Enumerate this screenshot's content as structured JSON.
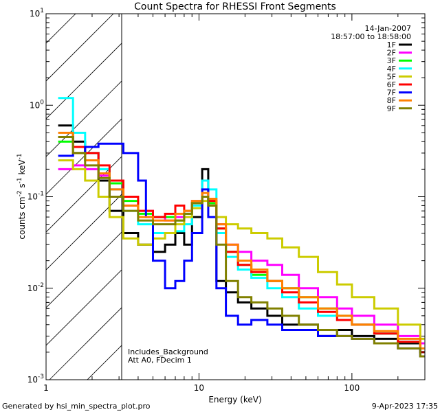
{
  "chart_data": {
    "type": "line",
    "title": "Count Spectra for RHESSI Front Segments",
    "xlabel": "Energy (keV)",
    "ylabel": "counts cm-2 s-1 keV-1",
    "xscale": "log",
    "yscale": "log",
    "xlim": [
      1,
      300
    ],
    "ylim": [
      0.001,
      10
    ],
    "x_ticks": [
      {
        "value": 1,
        "label": "1"
      },
      {
        "value": 10,
        "label": "10"
      },
      {
        "value": 100,
        "label": "100"
      }
    ],
    "y_ticks": [
      {
        "value": 0.001,
        "base": "10",
        "exp": "-3"
      },
      {
        "value": 0.01,
        "base": "10",
        "exp": "-2"
      },
      {
        "value": 0.1,
        "base": "10",
        "exp": "-1"
      },
      {
        "value": 1,
        "base": "10",
        "exp": "0"
      },
      {
        "value": 10,
        "base": "10",
        "exp": "1"
      }
    ],
    "excluded_region": {
      "x_from": 1,
      "x_to": 3,
      "style": "hatched"
    },
    "date": "14-Jan-2007",
    "time_range": "18:57:00 to 18:58:00",
    "annotations": [
      "Includes_Background",
      "Att A0, FDecim 1"
    ],
    "legend_position": "top-right",
    "series": [
      {
        "name": "1F",
        "color": "#000000",
        "points": [
          [
            1.2,
            0.6
          ],
          [
            1.5,
            0.4
          ],
          [
            1.8,
            0.3
          ],
          [
            2.2,
            0.15
          ],
          [
            2.6,
            0.07
          ],
          [
            3.2,
            0.04
          ],
          [
            4.0,
            0.03
          ],
          [
            5.0,
            0.025
          ],
          [
            6.0,
            0.03
          ],
          [
            7.0,
            0.04
          ],
          [
            8.0,
            0.03
          ],
          [
            9.0,
            0.06
          ],
          [
            10.5,
            0.2
          ],
          [
            11.5,
            0.08
          ],
          [
            13,
            0.012
          ],
          [
            15,
            0.009
          ],
          [
            18,
            0.007
          ],
          [
            22,
            0.006
          ],
          [
            28,
            0.005
          ],
          [
            35,
            0.004
          ],
          [
            45,
            0.004
          ],
          [
            60,
            0.003
          ],
          [
            80,
            0.0035
          ],
          [
            100,
            0.003
          ],
          [
            140,
            0.0028
          ],
          [
            200,
            0.0025
          ],
          [
            280,
            0.002
          ]
        ]
      },
      {
        "name": "2F",
        "color": "#ff00ff",
        "points": [
          [
            1.2,
            0.2
          ],
          [
            1.5,
            0.22
          ],
          [
            1.8,
            0.2
          ],
          [
            2.2,
            0.17
          ],
          [
            2.6,
            0.12
          ],
          [
            3.2,
            0.08
          ],
          [
            4.0,
            0.07
          ],
          [
            5.0,
            0.06
          ],
          [
            6.0,
            0.055
          ],
          [
            7.0,
            0.06
          ],
          [
            8.0,
            0.07
          ],
          [
            9.0,
            0.09
          ],
          [
            10.5,
            0.11
          ],
          [
            11.5,
            0.09
          ],
          [
            13,
            0.05
          ],
          [
            15,
            0.03
          ],
          [
            18,
            0.025
          ],
          [
            22,
            0.02
          ],
          [
            28,
            0.018
          ],
          [
            35,
            0.014
          ],
          [
            45,
            0.01
          ],
          [
            60,
            0.008
          ],
          [
            80,
            0.006
          ],
          [
            100,
            0.005
          ],
          [
            140,
            0.004
          ],
          [
            200,
            0.003
          ],
          [
            280,
            0.0025
          ]
        ]
      },
      {
        "name": "3F",
        "color": "#00ff00",
        "points": [
          [
            1.2,
            0.4
          ],
          [
            1.5,
            0.3
          ],
          [
            1.8,
            0.25
          ],
          [
            2.2,
            0.2
          ],
          [
            2.6,
            0.14
          ],
          [
            3.2,
            0.09
          ],
          [
            4.0,
            0.065
          ],
          [
            5.0,
            0.06
          ],
          [
            6.0,
            0.06
          ],
          [
            7.0,
            0.055
          ],
          [
            8.0,
            0.065
          ],
          [
            9.0,
            0.085
          ],
          [
            10.5,
            0.1
          ],
          [
            11.5,
            0.085
          ],
          [
            13,
            0.045
          ],
          [
            15,
            0.025
          ],
          [
            18,
            0.018
          ],
          [
            22,
            0.014
          ],
          [
            28,
            0.012
          ],
          [
            35,
            0.01
          ],
          [
            45,
            0.008
          ],
          [
            60,
            0.006
          ],
          [
            80,
            0.005
          ],
          [
            100,
            0.004
          ],
          [
            140,
            0.0032
          ],
          [
            200,
            0.0026
          ],
          [
            280,
            0.002
          ]
        ]
      },
      {
        "name": "4F",
        "color": "#00ffff",
        "points": [
          [
            1.2,
            1.2
          ],
          [
            1.5,
            0.5
          ],
          [
            1.8,
            0.3
          ],
          [
            2.2,
            0.2
          ],
          [
            2.6,
            0.12
          ],
          [
            3.2,
            0.07
          ],
          [
            4.0,
            0.05
          ],
          [
            5.0,
            0.04
          ],
          [
            6.0,
            0.04
          ],
          [
            7.0,
            0.042
          ],
          [
            8.0,
            0.05
          ],
          [
            9.0,
            0.08
          ],
          [
            10.5,
            0.15
          ],
          [
            11.5,
            0.12
          ],
          [
            13,
            0.04
          ],
          [
            15,
            0.022
          ],
          [
            18,
            0.016
          ],
          [
            22,
            0.013
          ],
          [
            28,
            0.01
          ],
          [
            35,
            0.008
          ],
          [
            45,
            0.006
          ],
          [
            60,
            0.005
          ],
          [
            80,
            0.0045
          ],
          [
            100,
            0.004
          ],
          [
            140,
            0.0032
          ],
          [
            200,
            0.0026
          ],
          [
            280,
            0.002
          ]
        ]
      },
      {
        "name": "5F",
        "color": "#cccc00",
        "points": [
          [
            1.2,
            0.25
          ],
          [
            1.5,
            0.2
          ],
          [
            1.8,
            0.15
          ],
          [
            2.2,
            0.1
          ],
          [
            2.6,
            0.06
          ],
          [
            3.2,
            0.035
          ],
          [
            4.0,
            0.03
          ],
          [
            5.0,
            0.035
          ],
          [
            6.0,
            0.04
          ],
          [
            7.0,
            0.05
          ],
          [
            8.0,
            0.06
          ],
          [
            9.0,
            0.075
          ],
          [
            10.5,
            0.09
          ],
          [
            11.5,
            0.08
          ],
          [
            13,
            0.06
          ],
          [
            15,
            0.05
          ],
          [
            18,
            0.045
          ],
          [
            22,
            0.04
          ],
          [
            28,
            0.035
          ],
          [
            35,
            0.028
          ],
          [
            45,
            0.022
          ],
          [
            60,
            0.015
          ],
          [
            80,
            0.011
          ],
          [
            100,
            0.008
          ],
          [
            140,
            0.006
          ],
          [
            200,
            0.004
          ],
          [
            280,
            0.0028
          ]
        ]
      },
      {
        "name": "6F",
        "color": "#ff0000",
        "points": [
          [
            1.2,
            0.45
          ],
          [
            1.5,
            0.35
          ],
          [
            1.8,
            0.3
          ],
          [
            2.2,
            0.22
          ],
          [
            2.6,
            0.15
          ],
          [
            3.2,
            0.1
          ],
          [
            4.0,
            0.07
          ],
          [
            5.0,
            0.06
          ],
          [
            6.0,
            0.065
          ],
          [
            7.0,
            0.08
          ],
          [
            8.0,
            0.07
          ],
          [
            9.0,
            0.085
          ],
          [
            10.5,
            0.1
          ],
          [
            11.5,
            0.09
          ],
          [
            13,
            0.045
          ],
          [
            15,
            0.025
          ],
          [
            18,
            0.018
          ],
          [
            22,
            0.015
          ],
          [
            28,
            0.012
          ],
          [
            35,
            0.009
          ],
          [
            45,
            0.007
          ],
          [
            60,
            0.0055
          ],
          [
            80,
            0.0045
          ],
          [
            100,
            0.004
          ],
          [
            140,
            0.0032
          ],
          [
            200,
            0.0026
          ],
          [
            280,
            0.002
          ]
        ]
      },
      {
        "name": "7F",
        "color": "#0000ff",
        "points": [
          [
            1.2,
            0.28
          ],
          [
            1.5,
            0.3
          ],
          [
            1.8,
            0.35
          ],
          [
            2.2,
            0.38
          ],
          [
            2.6,
            0.38
          ],
          [
            3.2,
            0.3
          ],
          [
            4.0,
            0.15
          ],
          [
            4.5,
            0.06
          ],
          [
            5.0,
            0.02
          ],
          [
            6.0,
            0.01
          ],
          [
            7.0,
            0.012
          ],
          [
            8.0,
            0.02
          ],
          [
            9.0,
            0.04
          ],
          [
            10.5,
            0.12
          ],
          [
            11.5,
            0.06
          ],
          [
            13,
            0.01
          ],
          [
            15,
            0.005
          ],
          [
            18,
            0.004
          ],
          [
            22,
            0.0045
          ],
          [
            28,
            0.004
          ],
          [
            35,
            0.0035
          ],
          [
            45,
            0.0035
          ],
          [
            60,
            0.003
          ],
          [
            80,
            0.003
          ],
          [
            100,
            0.0028
          ],
          [
            140,
            0.0025
          ],
          [
            200,
            0.0022
          ],
          [
            280,
            0.0018
          ]
        ]
      },
      {
        "name": "8F",
        "color": "#ff8000",
        "points": [
          [
            1.2,
            0.5
          ],
          [
            1.5,
            0.3
          ],
          [
            1.8,
            0.25
          ],
          [
            2.2,
            0.18
          ],
          [
            2.6,
            0.12
          ],
          [
            3.2,
            0.08
          ],
          [
            4.0,
            0.06
          ],
          [
            5.0,
            0.055
          ],
          [
            6.0,
            0.055
          ],
          [
            7.0,
            0.065
          ],
          [
            8.0,
            0.07
          ],
          [
            9.0,
            0.09
          ],
          [
            10.5,
            0.11
          ],
          [
            11.5,
            0.095
          ],
          [
            13,
            0.05
          ],
          [
            15,
            0.03
          ],
          [
            18,
            0.02
          ],
          [
            22,
            0.016
          ],
          [
            28,
            0.012
          ],
          [
            35,
            0.01
          ],
          [
            45,
            0.008
          ],
          [
            60,
            0.006
          ],
          [
            80,
            0.005
          ],
          [
            100,
            0.004
          ],
          [
            140,
            0.0034
          ],
          [
            200,
            0.0028
          ],
          [
            280,
            0.0022
          ]
        ]
      },
      {
        "name": "9F",
        "color": "#808000",
        "points": [
          [
            1.2,
            0.45
          ],
          [
            1.5,
            0.3
          ],
          [
            1.8,
            0.22
          ],
          [
            2.2,
            0.16
          ],
          [
            2.6,
            0.1
          ],
          [
            3.2,
            0.07
          ],
          [
            4.0,
            0.055
          ],
          [
            5.0,
            0.05
          ],
          [
            6.0,
            0.05
          ],
          [
            7.0,
            0.055
          ],
          [
            8.0,
            0.065
          ],
          [
            9.0,
            0.085
          ],
          [
            10.5,
            0.1
          ],
          [
            11.5,
            0.08
          ],
          [
            13,
            0.03
          ],
          [
            15,
            0.012
          ],
          [
            18,
            0.008
          ],
          [
            22,
            0.007
          ],
          [
            28,
            0.006
          ],
          [
            35,
            0.005
          ],
          [
            45,
            0.004
          ],
          [
            60,
            0.0035
          ],
          [
            80,
            0.003
          ],
          [
            100,
            0.0028
          ],
          [
            140,
            0.0025
          ],
          [
            200,
            0.0022
          ],
          [
            280,
            0.0018
          ]
        ]
      }
    ]
  },
  "footer": {
    "generated_by": "Generated by hsi_min_spectra_plot.pro",
    "timestamp": "9-Apr-2023 17:35"
  }
}
